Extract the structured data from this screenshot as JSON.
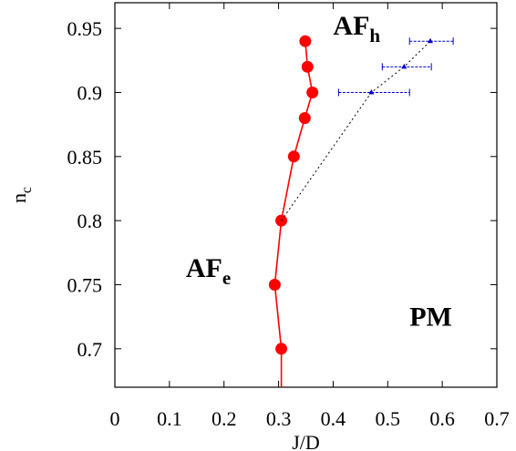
{
  "chart_data": {
    "type": "line",
    "xlabel": "J/D",
    "ylabel": "n",
    "ylabel_sub": "c",
    "xlim": [
      0,
      0.7
    ],
    "ylim": [
      0.67,
      0.97
    ],
    "xticks": [
      "0",
      "0.1",
      "0.2",
      "0.3",
      "0.4",
      "0.5",
      "0.6",
      "0.7"
    ],
    "yticks": [
      "0.7",
      "0.75",
      "0.8",
      "0.85",
      "0.9",
      "0.95"
    ],
    "grid": false,
    "series": [
      {
        "color": "#ff0000",
        "style": "solid-line-with-filled-circles",
        "points": [
          {
            "x": 0.305,
            "y": 0.67
          },
          {
            "x": 0.305,
            "y": 0.7
          },
          {
            "x": 0.293,
            "y": 0.75
          },
          {
            "x": 0.305,
            "y": 0.8
          },
          {
            "x": 0.328,
            "y": 0.85
          },
          {
            "x": 0.348,
            "y": 0.88
          },
          {
            "x": 0.362,
            "y": 0.9
          },
          {
            "x": 0.353,
            "y": 0.92
          },
          {
            "x": 0.349,
            "y": 0.94
          }
        ],
        "markers": [
          1,
          2,
          3,
          4,
          5,
          6,
          7,
          8
        ]
      },
      {
        "color": "#000000",
        "style": "dotted-line",
        "points": [
          {
            "x": 0.305,
            "y": 0.8
          },
          {
            "x": 0.47,
            "y": 0.9
          },
          {
            "x": 0.53,
            "y": 0.92
          },
          {
            "x": 0.578,
            "y": 0.94
          }
        ]
      },
      {
        "color": "#0000cc",
        "style": "x-errorbars",
        "points": [
          {
            "x": 0.47,
            "y": 0.9,
            "xerr_low": 0.41,
            "xerr_high": 0.54
          },
          {
            "x": 0.53,
            "y": 0.92,
            "xerr_low": 0.49,
            "xerr_high": 0.58
          },
          {
            "x": 0.578,
            "y": 0.94,
            "xerr_low": 0.54,
            "xerr_high": 0.62
          }
        ]
      }
    ],
    "annotations": [
      {
        "id": "afh",
        "text": "AF",
        "sub": "h",
        "x": 0.4,
        "y": 0.945
      },
      {
        "id": "afe",
        "text": "AF",
        "sub": "e",
        "x": 0.13,
        "y": 0.756
      },
      {
        "id": "pm",
        "text": "PM",
        "sub": "",
        "x": 0.54,
        "y": 0.718
      }
    ]
  }
}
